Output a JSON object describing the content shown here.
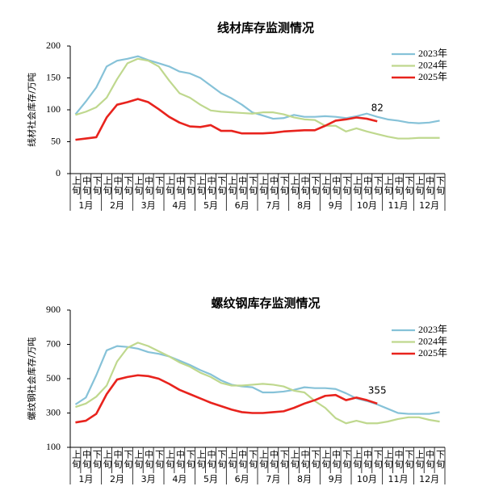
{
  "chart_data": [
    {
      "type": "line",
      "title": "线材库存监测情况",
      "ylabel": "线材社会库存/万吨",
      "categories": [
        "上旬",
        "中旬",
        "下旬",
        "上旬",
        "中旬",
        "下旬",
        "上旬",
        "中旬",
        "下旬",
        "上旬",
        "中旬",
        "下旬",
        "上旬",
        "中旬",
        "下旬",
        "上旬",
        "中旬",
        "下旬",
        "上旬",
        "中旬",
        "下旬",
        "上旬",
        "中旬",
        "下旬",
        "上旬",
        "中旬",
        "下旬",
        "上旬",
        "中旬",
        "下旬",
        "上旬",
        "中旬",
        "下旬",
        "上旬",
        "中旬",
        "下旬"
      ],
      "months": [
        "1月",
        "2月",
        "3月",
        "4月",
        "5月",
        "6月",
        "7月",
        "8月",
        "9月",
        "10月",
        "11月",
        "12月"
      ],
      "ylim": [
        0,
        200
      ],
      "yticks": [
        0,
        50,
        100,
        150,
        200
      ],
      "series": [
        {
          "name": "2023年",
          "color": "#86c2d8",
          "values": [
            93,
            113,
            135,
            168,
            177,
            180,
            184,
            178,
            173,
            168,
            160,
            157,
            150,
            138,
            126,
            118,
            108,
            96,
            91,
            86,
            87,
            92,
            89,
            89,
            90,
            89,
            87,
            90,
            94,
            89,
            85,
            83,
            80,
            79,
            80,
            83
          ]
        },
        {
          "name": "2024年",
          "color": "#bfd88e",
          "values": [
            92,
            97,
            104,
            119,
            148,
            173,
            180,
            177,
            168,
            146,
            126,
            119,
            108,
            99,
            97,
            96,
            95,
            94,
            96,
            96,
            93,
            88,
            85,
            84,
            75,
            75,
            66,
            71,
            66,
            62,
            58,
            55,
            55,
            56,
            56,
            56
          ]
        },
        {
          "name": "2025年",
          "color": "#e8231d",
          "values": [
            53,
            55,
            57,
            88,
            108,
            112,
            117,
            112,
            101,
            89,
            80,
            74,
            73,
            76,
            67,
            67,
            63,
            63,
            63,
            64,
            66,
            67,
            68,
            68,
            75,
            83,
            85,
            88,
            86,
            82,
            null,
            null,
            null,
            null,
            null,
            null
          ],
          "value_labels": [
            null,
            null,
            null,
            null,
            null,
            null,
            null,
            null,
            null,
            null,
            null,
            null,
            null,
            null,
            null,
            null,
            null,
            null,
            null,
            null,
            null,
            null,
            null,
            null,
            null,
            null,
            null,
            null,
            null,
            "82",
            null,
            null,
            null,
            null,
            null,
            null
          ]
        }
      ]
    },
    {
      "type": "line",
      "title": "螺纹钢库存监测情况",
      "ylabel": "螺纹钢社会库存/万吨",
      "categories": [
        "上旬",
        "中旬",
        "下旬",
        "上旬",
        "中旬",
        "下旬",
        "上旬",
        "中旬",
        "下旬",
        "上旬",
        "中旬",
        "下旬",
        "上旬",
        "中旬",
        "下旬",
        "上旬",
        "中旬",
        "下旬",
        "上旬",
        "中旬",
        "下旬",
        "上旬",
        "中旬",
        "下旬",
        "上旬",
        "中旬",
        "下旬",
        "上旬",
        "中旬",
        "下旬",
        "上旬",
        "中旬",
        "下旬",
        "上旬",
        "中旬",
        "下旬"
      ],
      "months": [
        "1月",
        "2月",
        "3月",
        "4月",
        "5月",
        "6月",
        "7月",
        "8月",
        "9月",
        "10月",
        "11月",
        "12月"
      ],
      "ylim": [
        100,
        900
      ],
      "yticks": [
        100,
        300,
        500,
        700,
        900
      ],
      "series": [
        {
          "name": "2023年",
          "color": "#86c2d8",
          "values": [
            350,
            390,
            520,
            665,
            690,
            685,
            675,
            655,
            645,
            630,
            605,
            580,
            550,
            525,
            490,
            465,
            455,
            450,
            420,
            420,
            425,
            435,
            450,
            445,
            445,
            440,
            415,
            385,
            370,
            350,
            325,
            300,
            295,
            295,
            295,
            305
          ]
        },
        {
          "name": "2024年",
          "color": "#bfd88e",
          "values": [
            335,
            355,
            395,
            460,
            600,
            680,
            710,
            690,
            660,
            630,
            595,
            570,
            535,
            510,
            475,
            460,
            460,
            465,
            470,
            465,
            455,
            430,
            420,
            370,
            330,
            270,
            240,
            255,
            240,
            240,
            250,
            265,
            275,
            275,
            260,
            250
          ]
        },
        {
          "name": "2025年",
          "color": "#e8231d",
          "values": [
            245,
            255,
            295,
            410,
            495,
            510,
            520,
            515,
            500,
            470,
            435,
            410,
            385,
            360,
            340,
            320,
            305,
            300,
            300,
            305,
            310,
            330,
            355,
            375,
            400,
            405,
            375,
            390,
            375,
            355,
            null,
            null,
            null,
            null,
            null,
            null
          ],
          "value_labels": [
            null,
            null,
            null,
            null,
            null,
            null,
            null,
            null,
            null,
            null,
            null,
            null,
            null,
            null,
            null,
            null,
            null,
            null,
            null,
            null,
            null,
            null,
            null,
            null,
            null,
            null,
            null,
            null,
            null,
            "355",
            null,
            null,
            null,
            null,
            null,
            null
          ]
        }
      ]
    }
  ]
}
